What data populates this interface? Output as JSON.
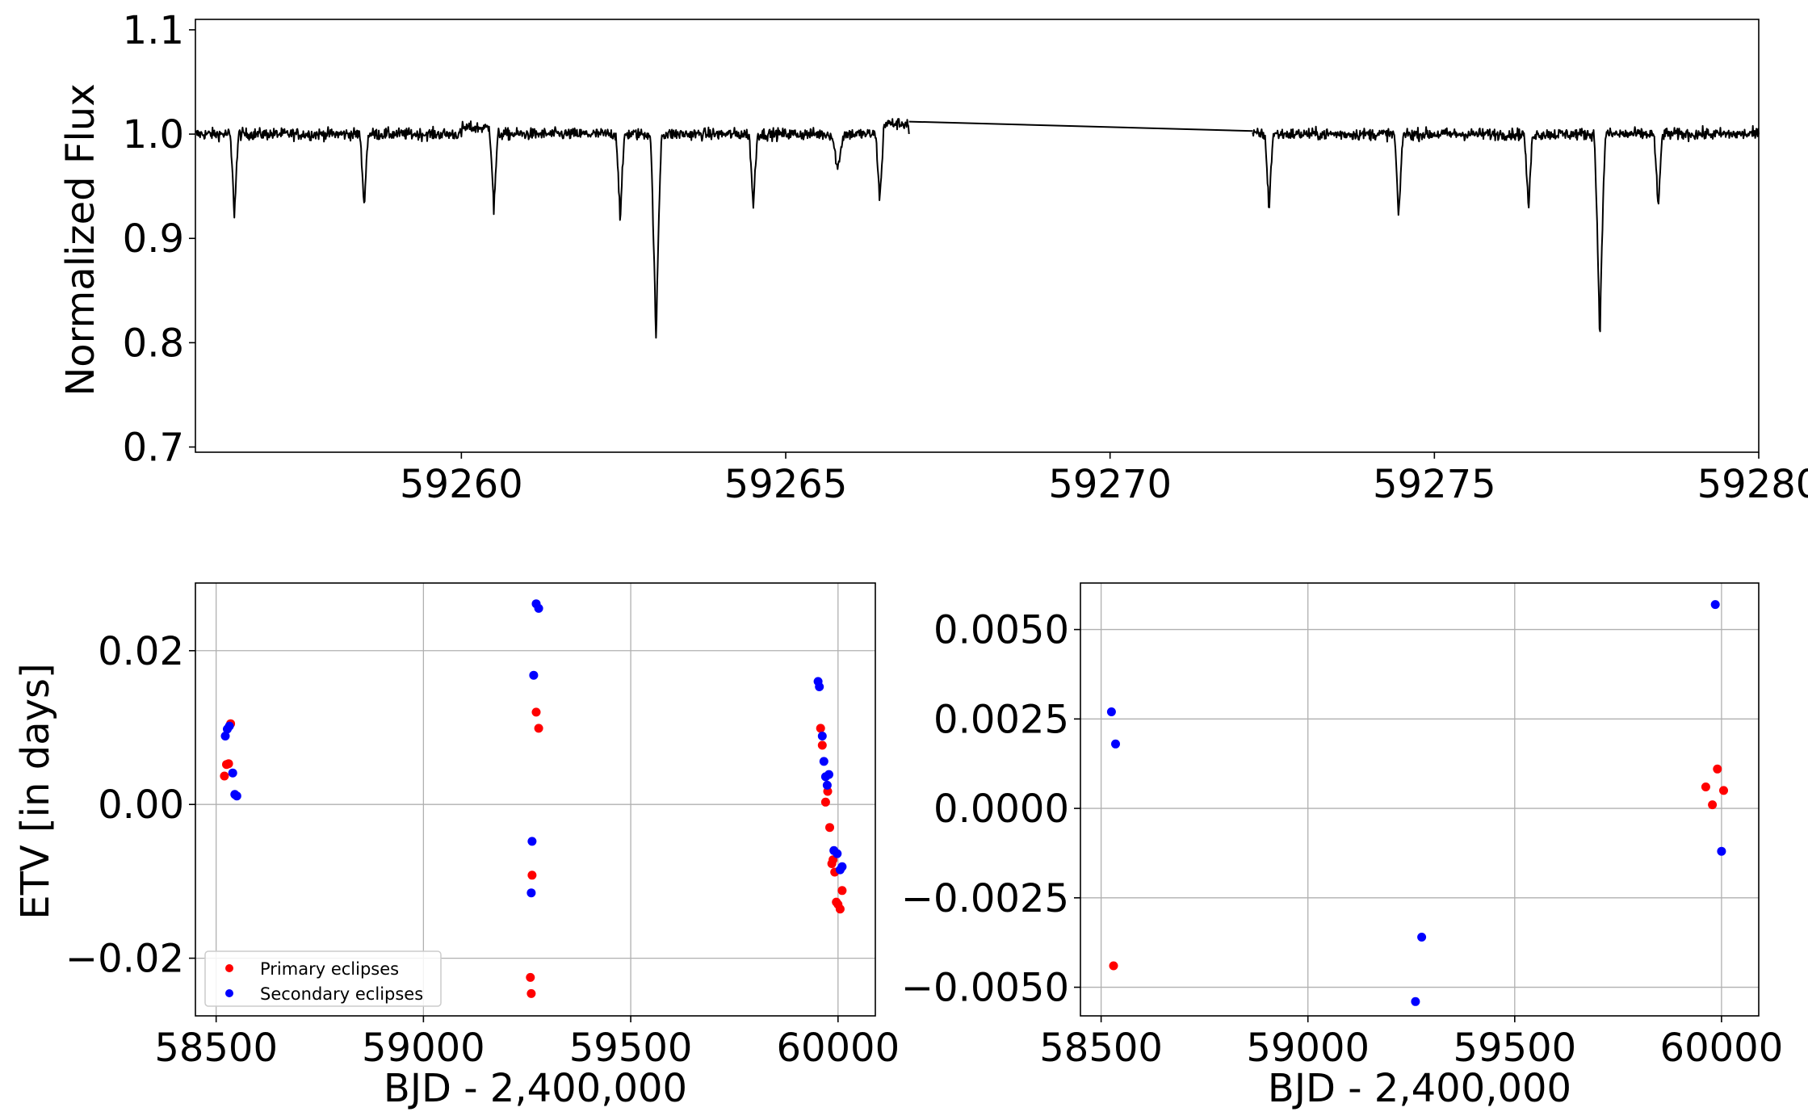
{
  "chart_data": [
    {
      "type": "line",
      "title": "",
      "xlabel": "",
      "ylabel": "Normalized Flux",
      "xlim": [
        59255.9,
        59280.0
      ],
      "ylim": [
        0.695,
        1.11
      ],
      "xticks": [
        59260,
        59265,
        59270,
        59275,
        59280
      ],
      "xtick_labels": [
        "59260",
        "59265",
        "59270",
        "59275",
        "59280"
      ],
      "yticks": [
        0.7,
        0.8,
        0.9,
        1.0,
        1.1
      ],
      "ytick_labels": [
        "0.7",
        "0.8",
        "0.9",
        "1.0",
        "1.1"
      ],
      "grid": false,
      "series": [
        {
          "color": "#000000",
          "baseline": 1.0,
          "noise": 0.004,
          "segments": [
            [
              59255.9,
              59266.9
            ],
            [
              59272.2,
              59280.0
            ]
          ],
          "gap": [
            [
              59266.9,
              1.012
            ],
            [
              59272.2,
              1.003
            ]
          ],
          "eclipses": [
            {
              "t": 59256.5,
              "depth": 0.078,
              "width": 0.07
            },
            {
              "t": 59258.5,
              "depth": 0.07,
              "width": 0.07
            },
            {
              "t": 59260.5,
              "depth": 0.075,
              "width": 0.07
            },
            {
              "t": 59262.45,
              "depth": 0.085,
              "width": 0.07
            },
            {
              "t": 59263.0,
              "depth": 0.2,
              "width": 0.09
            },
            {
              "t": 59264.5,
              "depth": 0.072,
              "width": 0.07
            },
            {
              "t": 59265.8,
              "depth": 0.035,
              "width": 0.1
            },
            {
              "t": 59266.45,
              "depth": 0.065,
              "width": 0.07
            },
            {
              "t": 59272.45,
              "depth": 0.073,
              "width": 0.07
            },
            {
              "t": 59274.45,
              "depth": 0.085,
              "width": 0.07
            },
            {
              "t": 59276.45,
              "depth": 0.075,
              "width": 0.07
            },
            {
              "t": 59277.55,
              "depth": 0.195,
              "width": 0.09
            },
            {
              "t": 59278.45,
              "depth": 0.075,
              "width": 0.07
            }
          ]
        }
      ]
    },
    {
      "type": "scatter",
      "title": "",
      "xlabel": "BJD - 2,400,000",
      "ylabel": "ETV [in days]",
      "xlim": [
        58450,
        60090
      ],
      "ylim": [
        -0.0275,
        0.0288
      ],
      "xticks": [
        58500,
        59000,
        59500,
        60000
      ],
      "xtick_labels": [
        "58500",
        "59000",
        "59500",
        "60000"
      ],
      "yticks": [
        -0.02,
        0.0,
        0.02
      ],
      "ytick_labels": [
        "−0.02",
        "0.00",
        "0.02"
      ],
      "grid": true,
      "legend": "lower-left",
      "series": [
        {
          "name": "Primary eclipses",
          "color": "#ff0000",
          "points": [
            [
              58520,
              0.0037
            ],
            [
              58525,
              0.0052
            ],
            [
              58530,
              0.0053
            ],
            [
              58535,
              0.0105
            ],
            [
              59258,
              -0.0225
            ],
            [
              59260,
              -0.0246
            ],
            [
              59262,
              -0.0092
            ],
            [
              59272,
              0.012
            ],
            [
              59278,
              0.0099
            ],
            [
              59958,
              0.0099
            ],
            [
              59962,
              0.0077
            ],
            [
              59970,
              0.0003
            ],
            [
              59975,
              0.0017
            ],
            [
              59980,
              -0.003
            ],
            [
              59985,
              -0.0077
            ],
            [
              59988,
              -0.0072
            ],
            [
              59992,
              -0.0088
            ],
            [
              59996,
              -0.0127
            ],
            [
              60000,
              -0.013
            ],
            [
              60005,
              -0.0136
            ],
            [
              60010,
              -0.0112
            ]
          ]
        },
        {
          "name": "Secondary eclipses",
          "color": "#0000ff",
          "points": [
            [
              58522,
              0.0089
            ],
            [
              58527,
              0.0098
            ],
            [
              58532,
              0.0102
            ],
            [
              58540,
              0.0041
            ],
            [
              58545,
              0.0013
            ],
            [
              58550,
              0.0011
            ],
            [
              59260,
              -0.0115
            ],
            [
              59262,
              -0.0048
            ],
            [
              59266,
              0.0168
            ],
            [
              59272,
              0.0261
            ],
            [
              59278,
              0.0255
            ],
            [
              59952,
              0.016
            ],
            [
              59955,
              0.0153
            ],
            [
              59962,
              0.0089
            ],
            [
              59966,
              0.0056
            ],
            [
              59970,
              0.0036
            ],
            [
              59974,
              0.0025
            ],
            [
              59978,
              0.0039
            ],
            [
              59990,
              -0.006
            ],
            [
              59998,
              -0.0064
            ],
            [
              60005,
              -0.0085
            ],
            [
              60010,
              -0.0081
            ]
          ]
        }
      ]
    },
    {
      "type": "scatter",
      "title": "",
      "xlabel": "BJD - 2,400,000",
      "ylabel": "",
      "xlim": [
        58450,
        60090
      ],
      "ylim": [
        -0.0058,
        0.0063
      ],
      "xticks": [
        58500,
        59000,
        59500,
        60000
      ],
      "xtick_labels": [
        "58500",
        "59000",
        "59500",
        "60000"
      ],
      "yticks": [
        -0.005,
        -0.0025,
        0.0,
        0.0025,
        0.005
      ],
      "ytick_labels": [
        "−0.0050",
        "−0.0025",
        "0.0000",
        "0.0025",
        "0.0050"
      ],
      "grid": true,
      "series": [
        {
          "color": "#ff0000",
          "points": [
            [
              58530,
              -0.0044
            ],
            [
              59962,
              0.0006
            ],
            [
              59978,
              0.0001
            ],
            [
              59990,
              0.0011
            ],
            [
              60005,
              0.0005
            ]
          ]
        },
        {
          "color": "#0000ff",
          "points": [
            [
              58525,
              0.0027
            ],
            [
              58535,
              0.0018
            ],
            [
              59260,
              -0.0054
            ],
            [
              59275,
              -0.0036
            ],
            [
              59985,
              0.0057
            ],
            [
              60000,
              -0.0012
            ]
          ]
        }
      ]
    }
  ]
}
